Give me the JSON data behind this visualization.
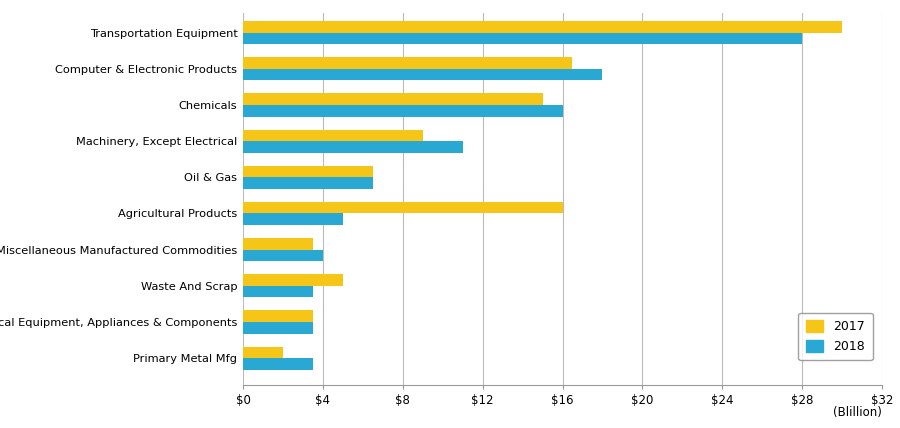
{
  "categories": [
    "Transportation Equipment",
    "Computer & Electronic Products",
    "Chemicals",
    "Machinery, Except Electrical",
    "Oil & Gas",
    "Agricultural Products",
    "Miscellaneous Manufactured Commodities",
    "Waste And Scrap",
    "Electrical Equipment, Appliances & Components",
    "Primary Metal Mfg"
  ],
  "values_2017": [
    30.0,
    16.5,
    15.0,
    9.0,
    6.5,
    16.0,
    3.5,
    5.0,
    3.5,
    2.0
  ],
  "values_2018": [
    28.0,
    18.0,
    16.0,
    11.0,
    6.5,
    5.0,
    4.0,
    3.5,
    3.5,
    3.5
  ],
  "color_2017": "#F5C518",
  "color_2018": "#29A8D4",
  "xlim": [
    0,
    32
  ],
  "xticks": [
    0,
    4,
    8,
    12,
    16,
    20,
    24,
    28,
    32
  ],
  "xtick_labels": [
    "$0",
    "$4",
    "$8",
    "$12",
    "$16",
    "$20",
    "$24",
    "$28",
    "$32"
  ],
  "unit_label": "(Blillion)",
  "legend_labels": [
    "2017",
    "2018"
  ],
  "bar_height": 0.32,
  "background_color": "#ffffff",
  "grid_color": "#bbbbbb"
}
